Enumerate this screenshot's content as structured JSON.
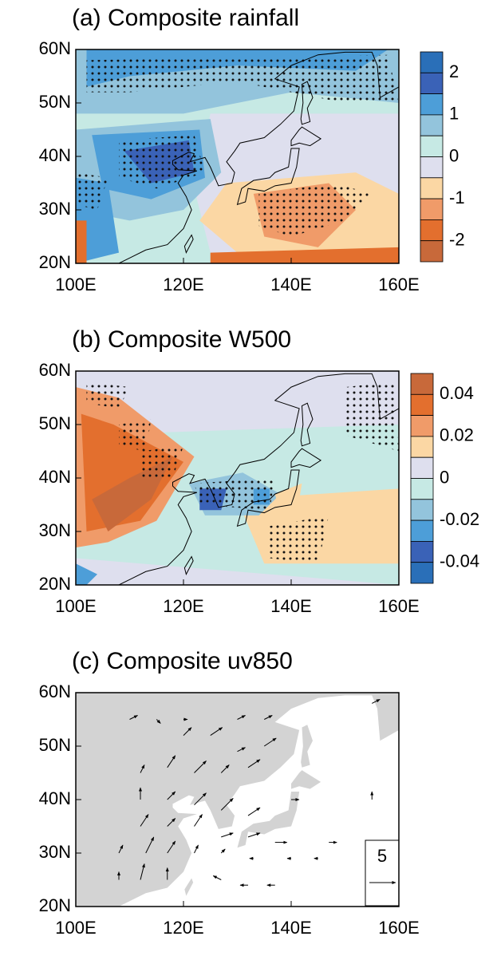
{
  "panels": [
    {
      "title": "(a) Composite rainfall",
      "x_labels": [
        "100E",
        "120E",
        "140E",
        "160E"
      ],
      "y_labels": [
        "60N",
        "50N",
        "40N",
        "30N",
        "20N"
      ],
      "colorbar_labels": [
        "2",
        "1",
        "0",
        "-1",
        "-2"
      ]
    },
    {
      "title": "(b) Composite W500",
      "x_labels": [
        "100E",
        "120E",
        "140E",
        "160E"
      ],
      "y_labels": [
        "60N",
        "50N",
        "40N",
        "30N",
        "20N"
      ],
      "colorbar_labels": [
        "0.04",
        "0.02",
        "0",
        "-0.02",
        "-0.04"
      ]
    },
    {
      "title": "(c) Composite uv850",
      "x_labels": [
        "100E",
        "120E",
        "140E",
        "160E"
      ],
      "y_labels": [
        "60N",
        "50N",
        "40N",
        "30N",
        "20N"
      ],
      "reference_vector": "5"
    }
  ]
}
